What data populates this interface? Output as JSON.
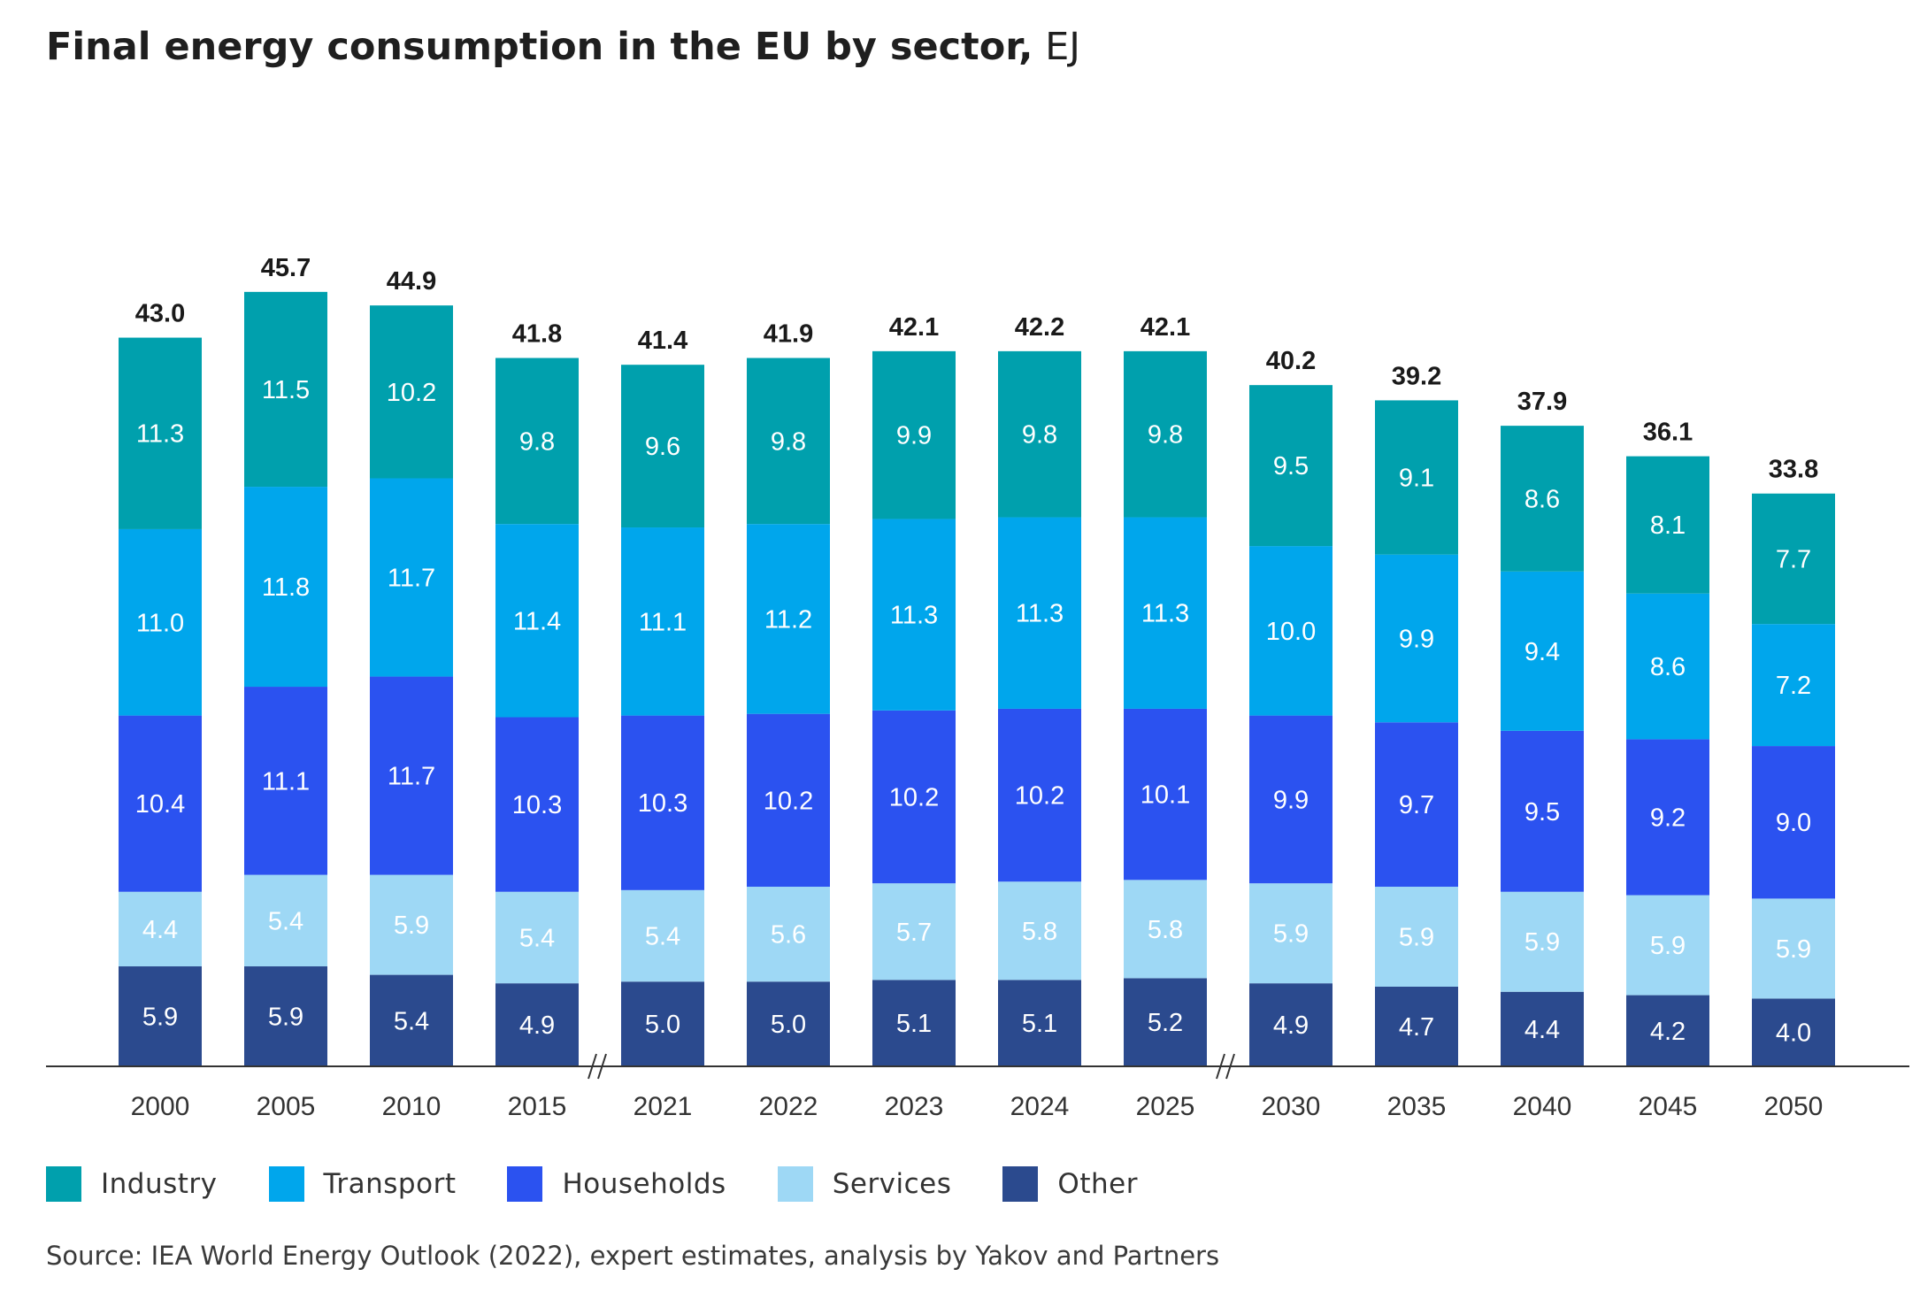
{
  "title": {
    "main": "Final energy consumption in the EU by sector,",
    "unit": "EJ"
  },
  "source": "Source: IEA World Energy Outlook (2022), expert estimates, analysis by Yakov and Partners",
  "colors": {
    "Other": "#2b4a8e",
    "Services": "#9ed8f5",
    "Households": "#2b52f0",
    "Transport": "#00a6ec",
    "Industry": "#00a0ad"
  },
  "legend": [
    "Industry",
    "Transport",
    "Households",
    "Services",
    "Other"
  ],
  "chart_data": {
    "type": "bar",
    "stacked": true,
    "title": "Final energy consumption in the EU by sector, EJ",
    "xlabel": "",
    "ylabel": "EJ",
    "ylim": [
      0,
      46
    ],
    "categories": [
      "2000",
      "2005",
      "2010",
      "2015",
      "2021",
      "2022",
      "2023",
      "2024",
      "2025",
      "2030",
      "2035",
      "2040",
      "2045",
      "2050"
    ],
    "axis_breaks_after": [
      "2015",
      "2025"
    ],
    "totals": [
      "43.0",
      "45.7",
      "44.9",
      "41.8",
      "41.4",
      "41.9",
      "42.1",
      "42.2",
      "42.1",
      "40.2",
      "39.2",
      "37.9",
      "36.1",
      "33.8"
    ],
    "series": [
      {
        "name": "Other",
        "values": [
          5.9,
          5.9,
          5.4,
          4.9,
          5.0,
          5.0,
          5.1,
          5.1,
          5.2,
          4.9,
          4.7,
          4.4,
          4.2,
          4.0
        ],
        "labels": [
          "5.9",
          "5.9",
          "5.4",
          "4.9",
          "5.0",
          "5.0",
          "5.1",
          "5.1",
          "5.2",
          "4.9",
          "4.7",
          "4.4",
          "4.2",
          "4.0"
        ]
      },
      {
        "name": "Services",
        "values": [
          4.4,
          5.4,
          5.9,
          5.4,
          5.4,
          5.6,
          5.7,
          5.8,
          5.8,
          5.9,
          5.9,
          5.9,
          5.9,
          5.9
        ],
        "labels": [
          "4.4",
          "5.4",
          "5.9",
          "5.4",
          "5.4",
          "5.6",
          "5.7",
          "5.8",
          "5.8",
          "5.9",
          "5.9",
          "5.9",
          "5.9",
          "5.9"
        ]
      },
      {
        "name": "Households",
        "values": [
          10.4,
          11.1,
          11.7,
          10.3,
          10.3,
          10.2,
          10.2,
          10.2,
          10.1,
          9.9,
          9.7,
          9.5,
          9.2,
          9.0
        ],
        "labels": [
          "10.4",
          "11.1",
          "11.7",
          "10.3",
          "10.3",
          "10.2",
          "10.2",
          "10.2",
          "10.1",
          "9.9",
          "9.7",
          "9.5",
          "9.2",
          "9.0"
        ]
      },
      {
        "name": "Transport",
        "values": [
          11.0,
          11.8,
          11.7,
          11.4,
          11.1,
          11.2,
          11.3,
          11.3,
          11.3,
          10.0,
          9.9,
          9.4,
          8.6,
          7.2
        ],
        "labels": [
          "11.0",
          "11.8",
          "11.7",
          "11.4",
          "11.1",
          "11.2",
          "11.3",
          "11.3",
          "11.3",
          "10.0",
          "9.9",
          "9.4",
          "8.6",
          "7.2"
        ]
      },
      {
        "name": "Industry",
        "values": [
          11.3,
          11.5,
          10.2,
          9.8,
          9.6,
          9.8,
          9.9,
          9.8,
          9.8,
          9.5,
          9.1,
          8.6,
          8.1,
          7.7
        ],
        "labels": [
          "11.3",
          "11.5",
          "10.2",
          "9.8",
          "9.6",
          "9.8",
          "9.9",
          "9.8",
          "9.8",
          "9.5",
          "9.1",
          "8.6",
          "8.1",
          "7.7"
        ]
      }
    ]
  }
}
